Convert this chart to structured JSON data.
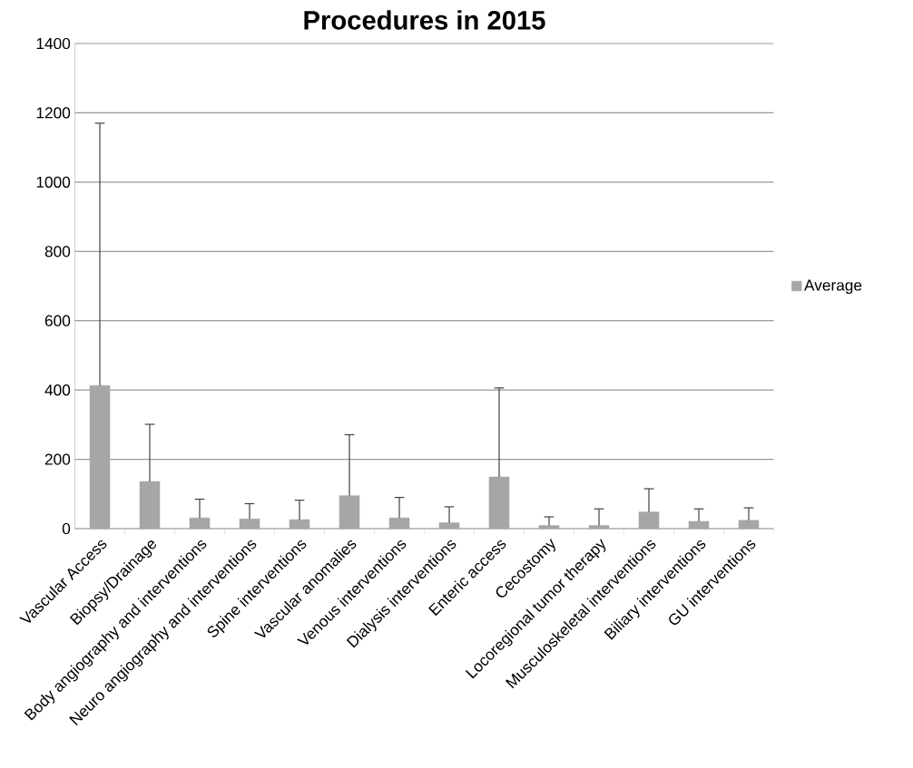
{
  "chart_data": {
    "type": "bar",
    "title": "Procedures in 2015",
    "categories": [
      "Vascular Access",
      "Biopsy/Drainage",
      "Body angiography and interventions",
      "Neuro angiography and interventions",
      "Spine interventions",
      "Vascular anomalies",
      "Venous interventions",
      "Dialysis interventions",
      "Enteric access",
      "Cecostomy",
      "Locoregional tumor therapy",
      "Musculoskeletal interventions",
      "Biliary interventions",
      "GU interventions"
    ],
    "series": [
      {
        "name": "Average",
        "color": "#a6a6a6",
        "values": [
          413,
          136,
          31,
          28,
          26,
          95,
          31,
          17,
          149,
          9,
          9,
          48,
          21,
          24
        ],
        "errors": [
          [
            413,
            1170
          ],
          [
            136,
            301
          ],
          [
            31,
            85
          ],
          [
            28,
            72
          ],
          [
            26,
            82
          ],
          [
            95,
            271
          ],
          [
            31,
            90
          ],
          [
            17,
            63
          ],
          [
            149,
            406
          ],
          [
            9,
            34
          ],
          [
            9,
            57
          ],
          [
            48,
            115
          ],
          [
            21,
            57
          ],
          [
            24,
            60
          ]
        ]
      }
    ],
    "ylim": [
      0,
      1400
    ],
    "yticks": [
      0,
      200,
      400,
      600,
      800,
      1000,
      1200,
      1400
    ],
    "grid": "y",
    "legend": "right"
  }
}
